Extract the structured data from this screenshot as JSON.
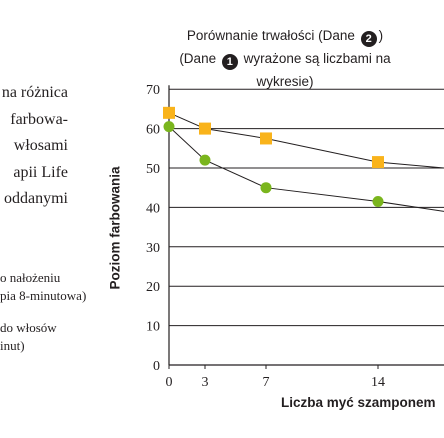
{
  "header": {
    "title": "Porównanie trwałości (Dane ",
    "title_badge": "2",
    "title_end": ")",
    "subtitle_start": "(Dane ",
    "subtitle_badge": "1",
    "subtitle_end": " wyrażone są liczbami na wykresie)"
  },
  "left_text": {
    "lines": [
      "na różnica",
      "farbowa-",
      "włosami",
      "apii Life",
      "oddanymi"
    ]
  },
  "legend_notes": {
    "item1_line1": "o nałożeniu",
    "item1_line2": "pia 8-minutowa)",
    "item2_line1": "do włosów",
    "item2_line2": "inut)"
  },
  "colors": {
    "orange_series": "#f9b31b",
    "green_series": "#7ab51d",
    "line": "#231f20"
  },
  "chart_data": {
    "type": "line",
    "xlabel": "Liczba myć szamponem",
    "ylabel": "Poziom farbowania",
    "x_ticks": [
      0,
      3,
      7,
      14
    ],
    "y_ticks": [
      0,
      10,
      20,
      30,
      40,
      50,
      60,
      70
    ],
    "ylim": [
      0,
      70
    ],
    "grid": true,
    "series": [
      {
        "marker": "square",
        "color": "#f9b31b",
        "x": [
          0,
          3,
          7,
          14,
          18
        ],
        "y": [
          64,
          60,
          57.5,
          51.5,
          50
        ]
      },
      {
        "marker": "circle",
        "color": "#7ab51d",
        "x": [
          0,
          3,
          7,
          14,
          18
        ],
        "y": [
          60.5,
          52,
          45,
          41.5,
          39
        ]
      }
    ]
  }
}
